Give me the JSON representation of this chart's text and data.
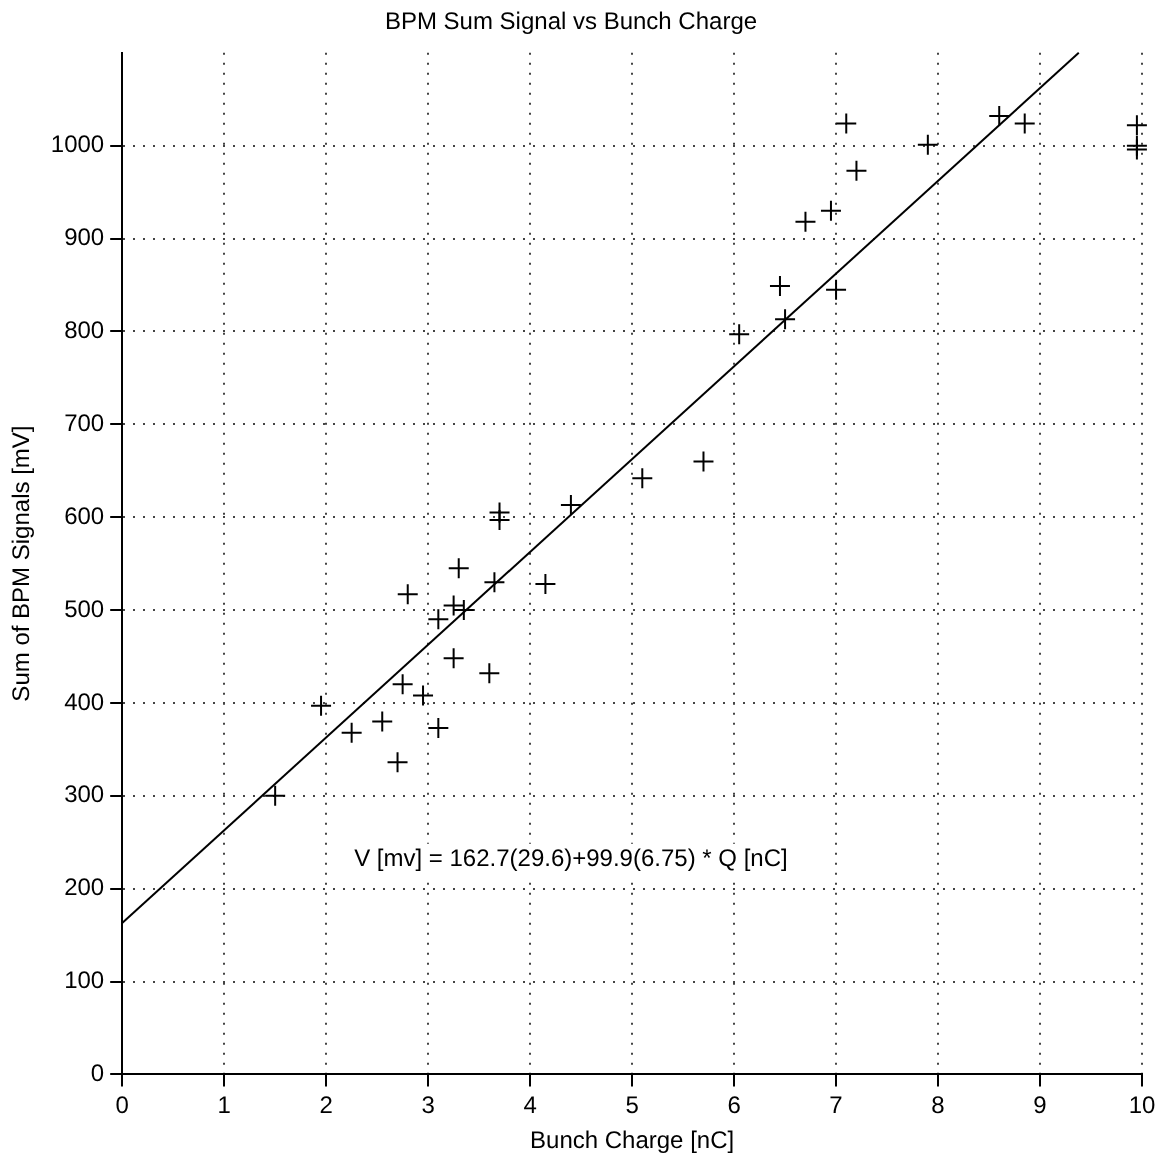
{
  "chart_data": {
    "type": "scatter",
    "title": "BPM Sum Signal vs Bunch Charge",
    "xlabel": "Bunch Charge [nC]",
    "ylabel": "Sum of BPM Signals [mV]",
    "xlim": [
      0,
      10
    ],
    "xticks": [
      0,
      1,
      2,
      3,
      4,
      5,
      6,
      7,
      8,
      9,
      10
    ],
    "ylim": [
      0,
      1100
    ],
    "yticks": [
      0,
      100,
      200,
      300,
      400,
      500,
      600,
      700,
      800,
      900,
      1000
    ],
    "grid": true,
    "marker": "cross",
    "legend": false,
    "annotations": [
      "V [mv] = 162.7(29.6)+99.9(6.75) * Q [nC]"
    ],
    "series": [
      {
        "type": "scatter",
        "color": "#000000",
        "x": [
          1.5,
          1.95,
          2.25,
          2.55,
          2.7,
          2.75,
          2.8,
          2.95,
          3.1,
          3.1,
          3.25,
          3.25,
          3.3,
          3.35,
          3.6,
          3.65,
          3.7,
          3.7,
          4.15,
          4.4,
          5.1,
          5.7,
          6.05,
          6.45,
          6.5,
          6.7,
          6.95,
          7.0,
          7.1,
          7.2,
          7.9,
          8.6,
          8.85,
          9.95,
          9.95,
          9.95
        ],
        "values": [
          300,
          397,
          368,
          380,
          336,
          420,
          517,
          408,
          490,
          373,
          505,
          448,
          545,
          500,
          432,
          530,
          597,
          605,
          528,
          613,
          642,
          660,
          797,
          849,
          813,
          918,
          930,
          845,
          1024,
          973,
          1001,
          1032,
          1024,
          1022,
          1000,
          996
        ]
      },
      {
        "type": "line",
        "marker": "none",
        "color": "#000000",
        "x": [
          0,
          9.38
        ],
        "values": [
          163,
          1100
        ]
      }
    ]
  }
}
